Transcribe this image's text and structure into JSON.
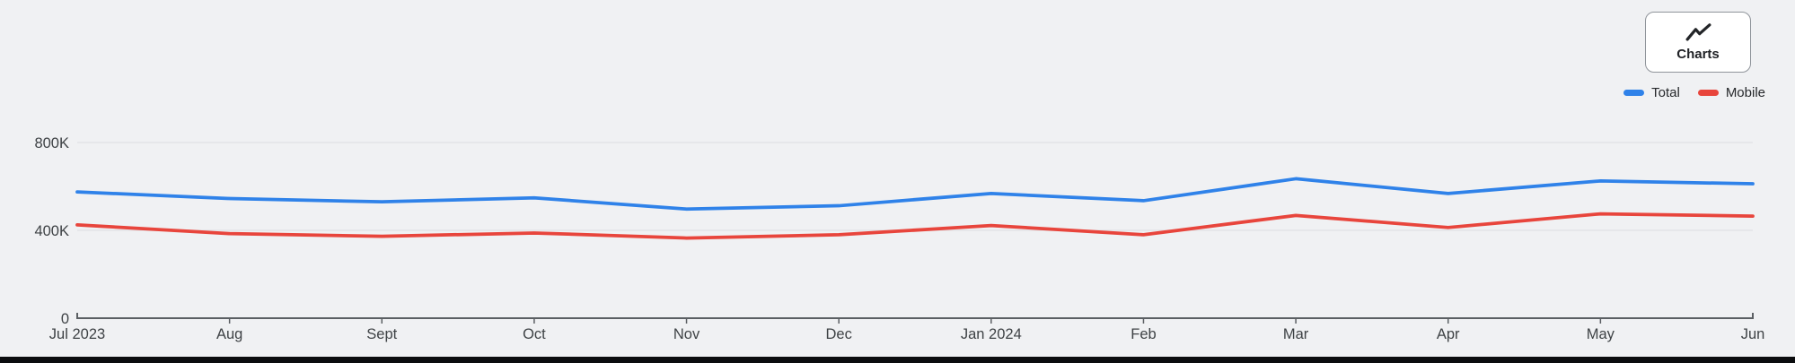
{
  "chart_data": {
    "type": "line",
    "title": "",
    "xlabel": "",
    "ylabel": "",
    "x_categories": [
      "Jul 2023",
      "Aug",
      "Sept",
      "Oct",
      "Nov",
      "Dec",
      "Jan 2024",
      "Feb",
      "Mar",
      "Apr",
      "May",
      "Jun"
    ],
    "series": [
      {
        "name": "Total",
        "color": "#2f82e9",
        "values_thousands": [
          575,
          545,
          530,
          548,
          497,
          512,
          568,
          535,
          635,
          568,
          625,
          612
        ]
      },
      {
        "name": "Mobile",
        "color": "#e8453c",
        "values_thousands": [
          425,
          385,
          373,
          388,
          365,
          380,
          422,
          380,
          468,
          413,
          475,
          465
        ]
      }
    ],
    "y_axis": {
      "unit": "thousands",
      "ticks": [
        {
          "value": 0,
          "label": "0"
        },
        {
          "value": 400,
          "label": "400K"
        },
        {
          "value": 800,
          "label": "800K"
        }
      ]
    },
    "ylim": [
      0,
      800
    ],
    "grid": "horizontal",
    "legend_position": "top-right"
  },
  "legend": {
    "items": [
      {
        "label": "Total",
        "color": "#2f82e9"
      },
      {
        "label": "Mobile",
        "color": "#e8453c"
      }
    ]
  },
  "charts_button": {
    "label": "Charts",
    "icon": "line-chart-icon"
  },
  "colors": {
    "background": "#f0f1f3",
    "gridline": "#e2e4e7",
    "axis": "#5b5f63",
    "tick_text": "#3e4245",
    "button_border": "#8f949a",
    "button_bg": "#ffffff",
    "bottom_edge": "#0b0c0e"
  }
}
